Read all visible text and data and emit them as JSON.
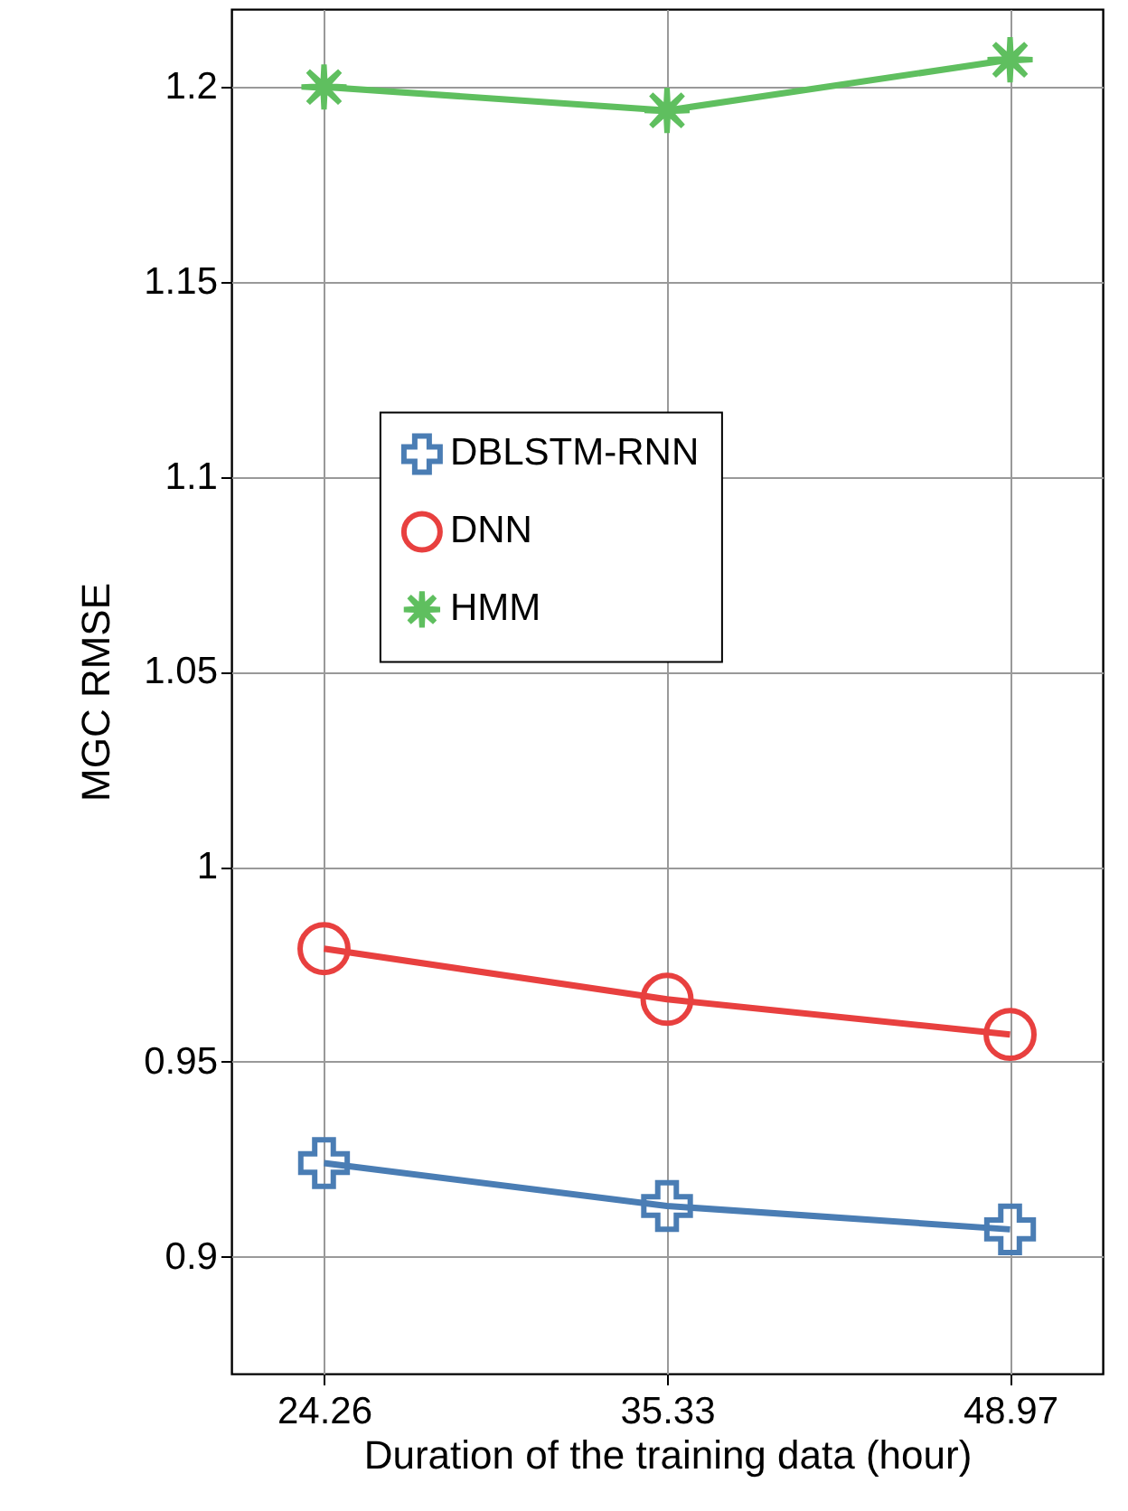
{
  "chart_data": {
    "type": "line",
    "xlabel": "Duration of the training data (hour)",
    "ylabel": "MGC RMSE",
    "categories": [
      "24.26",
      "35.33",
      "48.97"
    ],
    "series": [
      {
        "name": "DBLSTM-RNN",
        "color": "#4a7db4",
        "marker": "cross",
        "values": [
          0.924,
          0.913,
          0.907
        ]
      },
      {
        "name": "DNN",
        "color": "#e8403f",
        "marker": "circle",
        "values": [
          0.979,
          0.966,
          0.957
        ]
      },
      {
        "name": "HMM",
        "color": "#5fbf5f",
        "marker": "star",
        "values": [
          1.2,
          1.194,
          1.207
        ]
      }
    ],
    "ylim": [
      0.87,
      1.22
    ],
    "yticks": [
      {
        "value": 0.9,
        "label": "0.9"
      },
      0.95,
      {
        "value": 1,
        "label": "1"
      },
      1.05,
      {
        "value": 1.1,
        "label": "1.1"
      },
      1.15,
      {
        "value": 1.2,
        "label": "1.2"
      }
    ],
    "grid": true,
    "legend": "top",
    "line_style": "solid"
  }
}
